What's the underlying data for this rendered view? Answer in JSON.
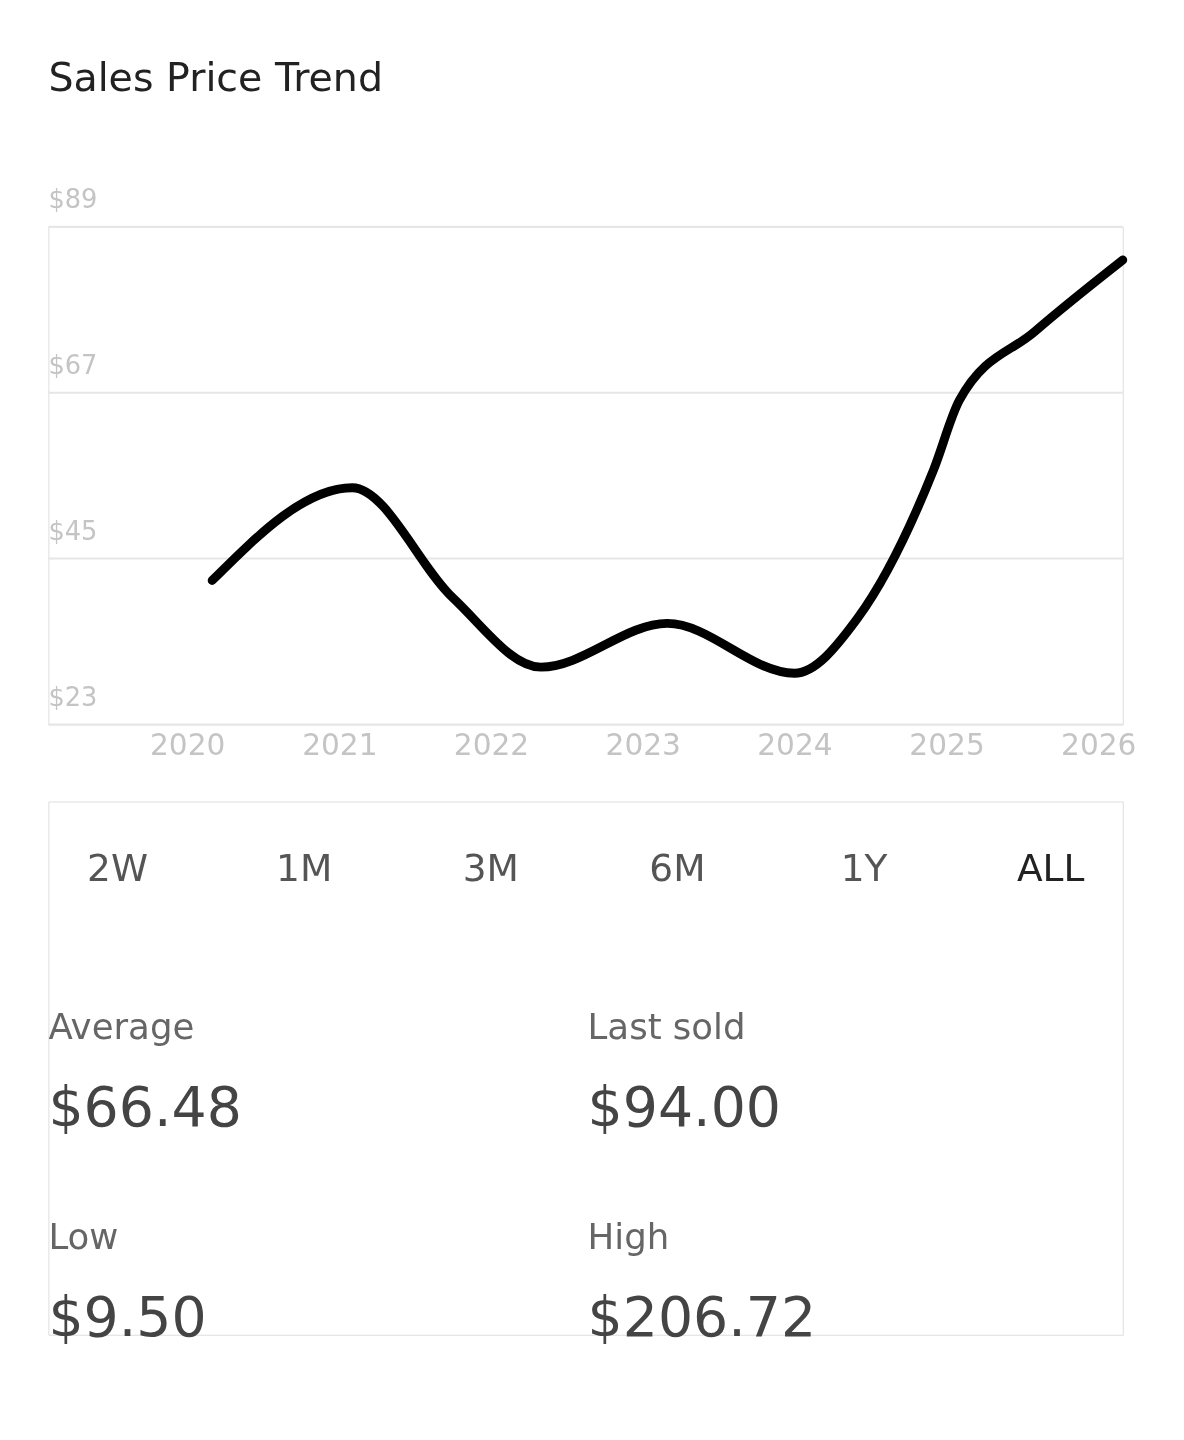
{
  "chart_data": {
    "type": "line",
    "title": "Sales Price Trend",
    "x": [
      "2020-03",
      "2021-02",
      "2021-10",
      "2022-05",
      "2023-03",
      "2024-01",
      "2024-06",
      "2024-12",
      "2025-02",
      "2025-08",
      "2026-03"
    ],
    "series": [
      {
        "color": "#000000",
        "values": [
          42.1,
          54.4,
          39.8,
          30.6,
          36.4,
          29.8,
          37.1,
          56.8,
          66.0,
          75.1,
          84.6
        ]
      }
    ],
    "xlim": [
      "2019-02",
      "2026-03"
    ],
    "xticks": [
      "2020",
      "2021",
      "2022",
      "2023",
      "2024",
      "2025",
      "2026"
    ],
    "ylim": [
      23,
      89
    ],
    "yticks": [
      {
        "value": 23,
        "label": "$23"
      },
      {
        "value": 45,
        "label": "$45"
      },
      {
        "value": 67,
        "label": "$67"
      },
      {
        "value": 89,
        "label": "$89"
      }
    ],
    "grid": "y",
    "line_style": "solid",
    "legend": false,
    "annotations": [
      "2W",
      "1M",
      "3M",
      "6M",
      "1Y",
      "ALL",
      "Average",
      "$66.48",
      "Last sold",
      "$94.00",
      "Low",
      "$9.50",
      "High",
      "$206.72"
    ]
  }
}
